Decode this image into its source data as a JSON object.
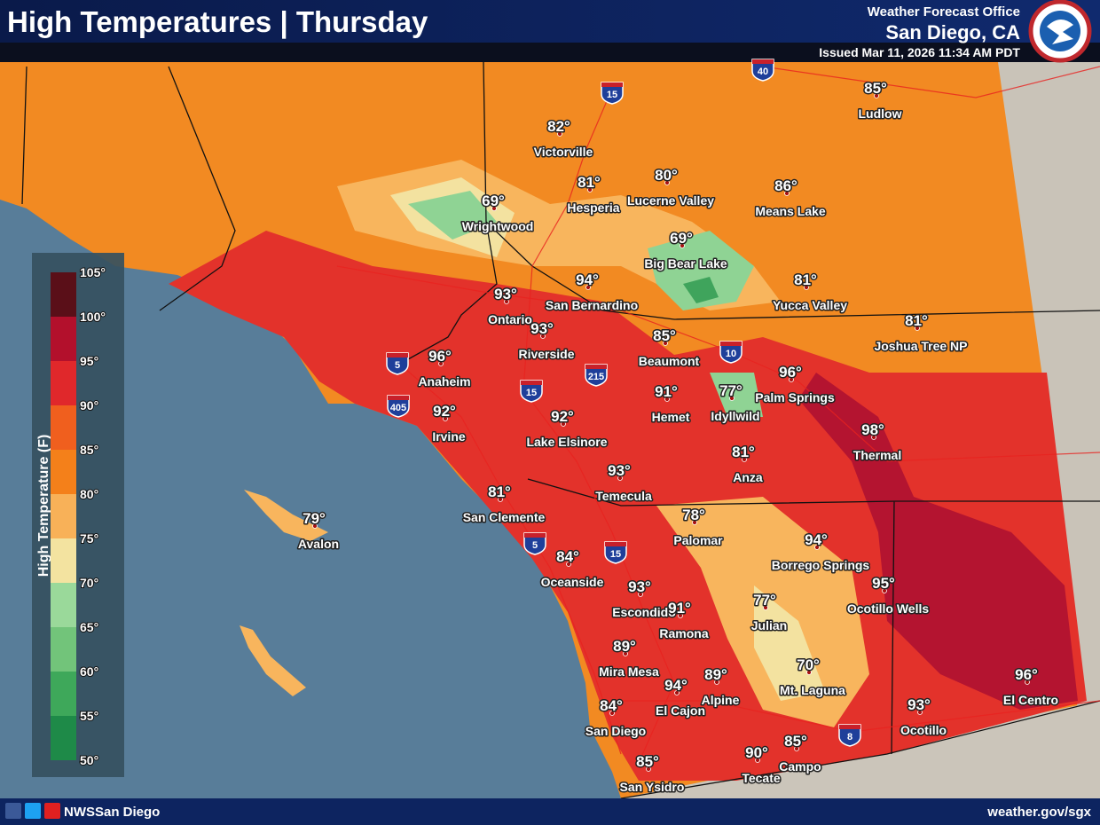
{
  "header": {
    "title": "High Temperatures | Thursday",
    "office": "Weather Forecast Office",
    "location": "San Diego, CA",
    "issued": "Issued Mar 11, 2026 11:34 AM PDT"
  },
  "legend": {
    "title": "High Temperature (F)",
    "labels": [
      "105°",
      "100°",
      "95°",
      "90°",
      "85°",
      "80°",
      "75°",
      "70°",
      "65°",
      "60°",
      "55°",
      "50°"
    ]
  },
  "highways": [
    "40",
    "15",
    "10",
    "5",
    "405",
    "15",
    "215",
    "5",
    "15",
    "8"
  ],
  "cities": [
    {
      "name": "Victorville",
      "temp": "82°"
    },
    {
      "name": "Ludlow",
      "temp": "85°"
    },
    {
      "name": "Hesperia",
      "temp": "81°"
    },
    {
      "name": "Lucerne Valley",
      "temp": "80°"
    },
    {
      "name": "Means Lake",
      "temp": "86°"
    },
    {
      "name": "Wrightwood",
      "temp": "69°"
    },
    {
      "name": "Big Bear Lake",
      "temp": "69°"
    },
    {
      "name": "Yucca Valley",
      "temp": "81°"
    },
    {
      "name": "Joshua Tree NP",
      "temp": "81°"
    },
    {
      "name": "Ontario",
      "temp": "93°"
    },
    {
      "name": "San Bernardino",
      "temp": "94°"
    },
    {
      "name": "Riverside",
      "temp": "93°"
    },
    {
      "name": "Beaumont",
      "temp": "85°"
    },
    {
      "name": "Anaheim",
      "temp": "96°"
    },
    {
      "name": "Palm Springs",
      "temp": "96°"
    },
    {
      "name": "Idyllwild",
      "temp": "77°"
    },
    {
      "name": "Hemet",
      "temp": "91°"
    },
    {
      "name": "Irvine",
      "temp": "92°"
    },
    {
      "name": "Lake Elsinore",
      "temp": "92°"
    },
    {
      "name": "Thermal",
      "temp": "98°"
    },
    {
      "name": "Anza",
      "temp": "81°"
    },
    {
      "name": "Temecula",
      "temp": "93°"
    },
    {
      "name": "San Clemente",
      "temp": "81°"
    },
    {
      "name": "Avalon",
      "temp": "79°"
    },
    {
      "name": "Palomar",
      "temp": "78°"
    },
    {
      "name": "Borrego Springs",
      "temp": "94°"
    },
    {
      "name": "Oceanside",
      "temp": "84°"
    },
    {
      "name": "Ocotillo Wells",
      "temp": "95°"
    },
    {
      "name": "Escondido",
      "temp": "93°"
    },
    {
      "name": "Ramona",
      "temp": "91°"
    },
    {
      "name": "Julian",
      "temp": "77°"
    },
    {
      "name": "Mira Mesa",
      "temp": "89°"
    },
    {
      "name": "Mt. Laguna",
      "temp": "70°"
    },
    {
      "name": "El Cajon",
      "temp": "94°"
    },
    {
      "name": "Alpine",
      "temp": "89°"
    },
    {
      "name": "El Centro",
      "temp": "96°"
    },
    {
      "name": "San Diego",
      "temp": "84°"
    },
    {
      "name": "Ocotillo",
      "temp": "93°"
    },
    {
      "name": "Campo",
      "temp": "85°"
    },
    {
      "name": "Tecate",
      "temp": "90°"
    },
    {
      "name": "San Ysidro",
      "temp": "85°"
    }
  ],
  "footer": {
    "handle": "NWSSan Diego",
    "url": "weather.gov/sgx"
  }
}
